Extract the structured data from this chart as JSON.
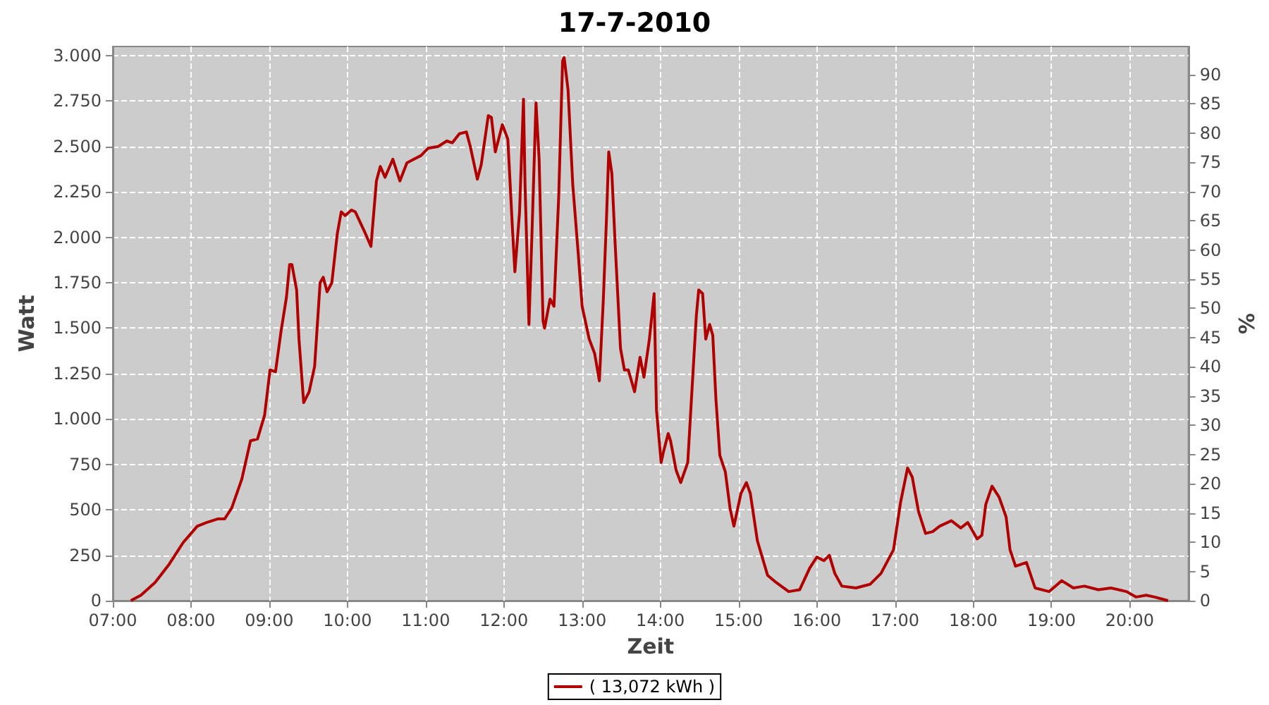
{
  "chart_data": {
    "type": "line",
    "title": "17-7-2010",
    "xlabel": "Zeit",
    "ylabel": "Watt",
    "y2label": "%",
    "xlim": [
      7,
      20.75
    ],
    "xticks": [
      {
        "value": 7,
        "label": "07:00"
      },
      {
        "value": 8,
        "label": "08:00"
      },
      {
        "value": 9,
        "label": "09:00"
      },
      {
        "value": 10,
        "label": "10:00"
      },
      {
        "value": 11,
        "label": "11:00"
      },
      {
        "value": 12,
        "label": "12:00"
      },
      {
        "value": 13,
        "label": "13:00"
      },
      {
        "value": 14,
        "label": "14:00"
      },
      {
        "value": 15,
        "label": "15:00"
      },
      {
        "value": 16,
        "label": "16:00"
      },
      {
        "value": 17,
        "label": "17:00"
      },
      {
        "value": 18,
        "label": "18:00"
      },
      {
        "value": 19,
        "label": "19:00"
      },
      {
        "value": 20,
        "label": "20:00"
      }
    ],
    "ylim": [
      0,
      3050
    ],
    "yticks": [
      0,
      250,
      500,
      750,
      {
        "value": 1000,
        "label": "1.000"
      },
      {
        "value": 1250,
        "label": "1.250"
      },
      {
        "value": 1500,
        "label": "1.500"
      },
      {
        "value": 1750,
        "label": "1.750"
      },
      {
        "value": 2000,
        "label": "2.000"
      },
      {
        "value": 2250,
        "label": "2.250"
      },
      {
        "value": 2500,
        "label": "2.500"
      },
      {
        "value": 2750,
        "label": "2.750"
      },
      {
        "value": 3000,
        "label": "3.000"
      }
    ],
    "y2lim": [
      0,
      94.8
    ],
    "y2ticks": [
      0,
      5,
      10,
      15,
      20,
      25,
      30,
      35,
      40,
      45,
      50,
      55,
      60,
      65,
      70,
      75,
      80,
      85,
      90
    ],
    "grid": true,
    "legend": "bottom",
    "marker": "none",
    "line_style": "solid",
    "series": [
      {
        "name": "( 13,072 kWh )",
        "color": "#b00000",
        "x": [
          7.23,
          7.36,
          7.54,
          7.72,
          7.9,
          8.08,
          8.2,
          8.34,
          8.43,
          8.52,
          8.65,
          8.76,
          8.85,
          8.94,
          9.01,
          9.08,
          9.15,
          9.22,
          9.26,
          9.29,
          9.35,
          9.38,
          9.44,
          9.51,
          9.58,
          9.65,
          9.69,
          9.74,
          9.8,
          9.87,
          9.92,
          9.97,
          10.05,
          10.1,
          10.23,
          10.3,
          10.37,
          10.42,
          10.48,
          10.58,
          10.67,
          10.76,
          10.85,
          10.94,
          11.03,
          11.16,
          11.27,
          11.34,
          11.43,
          11.52,
          11.57,
          11.66,
          11.71,
          11.8,
          11.84,
          11.89,
          11.98,
          12.05,
          12.11,
          12.14,
          12.2,
          12.25,
          12.27,
          12.32,
          12.36,
          12.41,
          12.45,
          12.5,
          12.52,
          12.59,
          12.64,
          12.7,
          12.75,
          12.77,
          12.82,
          12.88,
          12.95,
          13,
          13.09,
          13.16,
          13.22,
          13.27,
          13.31,
          13.34,
          13.38,
          13.42,
          13.49,
          13.54,
          13.59,
          13.67,
          13.74,
          13.79,
          13.86,
          13.92,
          13.95,
          14.01,
          14.04,
          14.1,
          14.13,
          14.2,
          14.26,
          14.35,
          14.4,
          14.46,
          14.49,
          14.54,
          14.58,
          14.63,
          14.67,
          14.71,
          14.76,
          14.83,
          14.89,
          14.94,
          15.03,
          15.1,
          15.15,
          15.24,
          15.37,
          15.48,
          15.64,
          15.78,
          15.91,
          16,
          16.09,
          16.16,
          16.23,
          16.32,
          16.5,
          16.68,
          16.82,
          16.98,
          17.07,
          17.16,
          17.22,
          17.3,
          17.39,
          17.48,
          17.57,
          17.72,
          17.84,
          17.93,
          18.05,
          18.11,
          18.16,
          18.24,
          18.33,
          18.42,
          18.47,
          18.54,
          18.68,
          18.79,
          18.97,
          19.13,
          19.28,
          19.42,
          19.6,
          19.76,
          19.96,
          20.08,
          20.21,
          20.32,
          20.49
        ],
        "values": [
          0,
          30,
          100,
          200,
          320,
          410,
          430,
          450,
          450,
          510,
          670,
          880,
          890,
          1020,
          1270,
          1260,
          1480,
          1670,
          1850,
          1850,
          1710,
          1440,
          1090,
          1150,
          1290,
          1750,
          1780,
          1700,
          1750,
          2020,
          2140,
          2120,
          2150,
          2140,
          2020,
          1950,
          2310,
          2390,
          2330,
          2430,
          2310,
          2410,
          2430,
          2450,
          2490,
          2500,
          2530,
          2520,
          2570,
          2580,
          2500,
          2320,
          2400,
          2670,
          2660,
          2470,
          2620,
          2540,
          2040,
          1810,
          2140,
          2760,
          2290,
          1520,
          2040,
          2740,
          2430,
          1540,
          1500,
          1660,
          1620,
          2220,
          2970,
          2990,
          2810,
          2290,
          1910,
          1620,
          1440,
          1360,
          1210,
          1650,
          2090,
          2470,
          2350,
          1980,
          1390,
          1270,
          1270,
          1150,
          1340,
          1230,
          1440,
          1690,
          1050,
          760,
          820,
          920,
          880,
          720,
          650,
          760,
          1130,
          1570,
          1710,
          1690,
          1440,
          1520,
          1460,
          1110,
          800,
          710,
          510,
          410,
          590,
          650,
          590,
          330,
          140,
          100,
          50,
          60,
          180,
          240,
          220,
          250,
          150,
          80,
          70,
          90,
          150,
          280,
          540,
          730,
          680,
          490,
          370,
          380,
          410,
          440,
          400,
          430,
          340,
          360,
          530,
          630,
          570,
          460,
          280,
          190,
          210,
          70,
          50,
          110,
          70,
          80,
          60,
          70,
          50,
          20,
          30,
          20,
          0
        ]
      }
    ]
  }
}
